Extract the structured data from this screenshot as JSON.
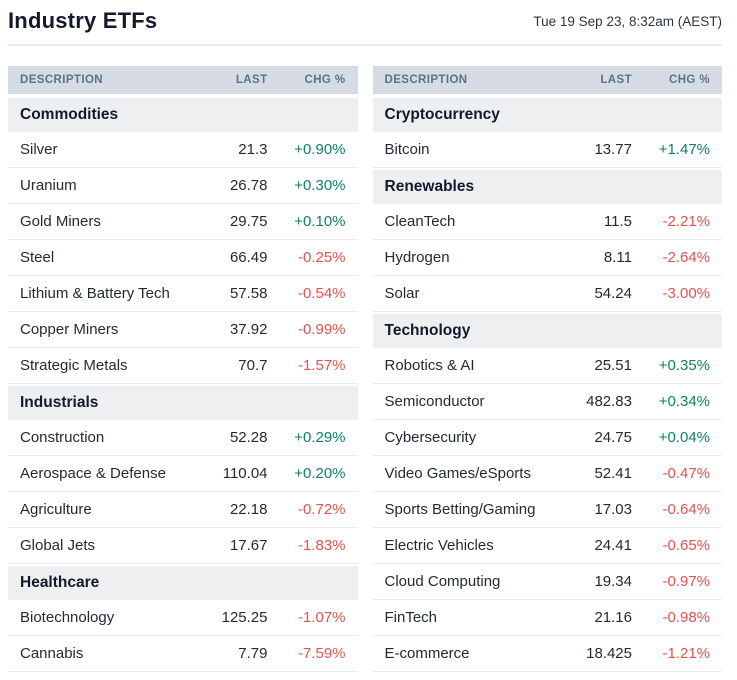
{
  "header": {
    "title": "Industry ETFs",
    "timestamp": "Tue 19 Sep 23, 8:32am (AEST)"
  },
  "columns": {
    "description": "DESCRIPTION",
    "last": "LAST",
    "chg": "CHG %"
  },
  "colors": {
    "positive": "#0e8165",
    "negative": "#e8504b",
    "header_bg": "#d5dce3",
    "section_bg": "#edeff1",
    "title_text": "#141a2c"
  },
  "tables": [
    {
      "sections": [
        {
          "name": "Commodities",
          "rows": [
            {
              "description": "Silver",
              "last": "21.3",
              "chg": "+0.90%"
            },
            {
              "description": "Uranium",
              "last": "26.78",
              "chg": "+0.30%"
            },
            {
              "description": "Gold Miners",
              "last": "29.75",
              "chg": "+0.10%"
            },
            {
              "description": "Steel",
              "last": "66.49",
              "chg": "-0.25%"
            },
            {
              "description": "Lithium & Battery Tech",
              "last": "57.58",
              "chg": "-0.54%"
            },
            {
              "description": "Copper Miners",
              "last": "37.92",
              "chg": "-0.99%"
            },
            {
              "description": "Strategic Metals",
              "last": "70.7",
              "chg": "-1.57%"
            }
          ]
        },
        {
          "name": "Industrials",
          "rows": [
            {
              "description": "Construction",
              "last": "52.28",
              "chg": "+0.29%"
            },
            {
              "description": "Aerospace & Defense",
              "last": "110.04",
              "chg": "+0.20%"
            },
            {
              "description": "Agriculture",
              "last": "22.18",
              "chg": "-0.72%"
            },
            {
              "description": "Global Jets",
              "last": "17.67",
              "chg": "-1.83%"
            }
          ]
        },
        {
          "name": "Healthcare",
          "rows": [
            {
              "description": "Biotechnology",
              "last": "125.25",
              "chg": "-1.07%"
            },
            {
              "description": "Cannabis",
              "last": "7.79",
              "chg": "-7.59%"
            }
          ]
        }
      ]
    },
    {
      "sections": [
        {
          "name": "Cryptocurrency",
          "rows": [
            {
              "description": "Bitcoin",
              "last": "13.77",
              "chg": "+1.47%"
            }
          ]
        },
        {
          "name": "Renewables",
          "rows": [
            {
              "description": "CleanTech",
              "last": "11.5",
              "chg": "-2.21%"
            },
            {
              "description": "Hydrogen",
              "last": "8.11",
              "chg": "-2.64%"
            },
            {
              "description": "Solar",
              "last": "54.24",
              "chg": "-3.00%"
            }
          ]
        },
        {
          "name": "Technology",
          "rows": [
            {
              "description": "Robotics & AI",
              "last": "25.51",
              "chg": "+0.35%"
            },
            {
              "description": "Semiconductor",
              "last": "482.83",
              "chg": "+0.34%"
            },
            {
              "description": "Cybersecurity",
              "last": "24.75",
              "chg": "+0.04%"
            },
            {
              "description": "Video Games/eSports",
              "last": "52.41",
              "chg": "-0.47%"
            },
            {
              "description": "Sports Betting/Gaming",
              "last": "17.03",
              "chg": "-0.64%"
            },
            {
              "description": "Electric Vehicles",
              "last": "24.41",
              "chg": "-0.65%"
            },
            {
              "description": "Cloud Computing",
              "last": "19.34",
              "chg": "-0.97%"
            },
            {
              "description": "FinTech",
              "last": "21.16",
              "chg": "-0.98%"
            },
            {
              "description": "E-commerce",
              "last": "18.425",
              "chg": "-1.21%"
            }
          ]
        }
      ]
    }
  ]
}
